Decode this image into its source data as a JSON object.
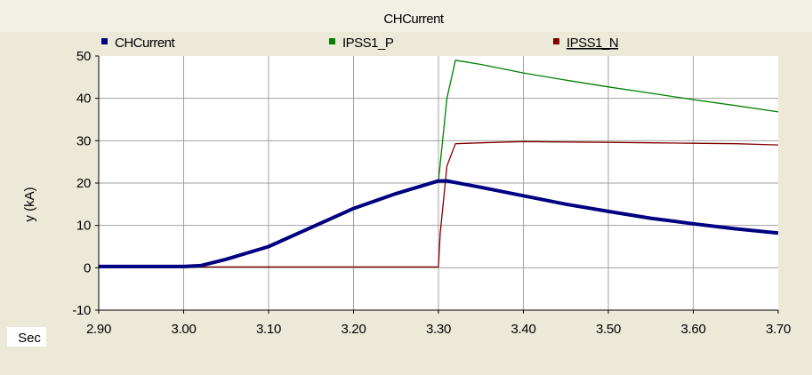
{
  "chart_data": {
    "type": "line",
    "title": "CHCurrent",
    "ylabel": "y (kA)",
    "xlabel": "Sec",
    "xlim": [
      2.9,
      3.7
    ],
    "ylim": [
      -10,
      50
    ],
    "x_ticks": [
      "2.90",
      "3.00",
      "3.10",
      "3.20",
      "3.30",
      "3.40",
      "3.50",
      "3.60",
      "3.70"
    ],
    "y_ticks": [
      "50",
      "40",
      "30",
      "20",
      "10",
      "0",
      "-10"
    ],
    "grid": true,
    "legend_position": "top",
    "series": [
      {
        "name": "CHCurrent",
        "color": "#000080",
        "x": [
          2.9,
          3.0,
          3.02,
          3.05,
          3.1,
          3.15,
          3.2,
          3.25,
          3.3,
          3.31,
          3.35,
          3.4,
          3.45,
          3.5,
          3.55,
          3.6,
          3.65,
          3.7
        ],
        "y": [
          0.3,
          0.3,
          0.5,
          2,
          5,
          9.5,
          14,
          17.5,
          20.5,
          20.5,
          19,
          17,
          15,
          13.3,
          11.7,
          10.4,
          9.2,
          8.2
        ]
      },
      {
        "name": "IPSS1_P",
        "color": "#008000",
        "x": [
          2.9,
          3.0,
          3.02,
          3.05,
          3.1,
          3.15,
          3.2,
          3.25,
          3.3,
          3.31,
          3.32,
          3.35,
          3.4,
          3.45,
          3.5,
          3.55,
          3.6,
          3.65,
          3.7
        ],
        "y": [
          0.3,
          0.3,
          0.5,
          2,
          5,
          9.5,
          14,
          17.5,
          20.5,
          40,
          49,
          48,
          46,
          44.3,
          42.7,
          41.2,
          39.7,
          38.3,
          36.8
        ]
      },
      {
        "name": "IPSS1_N",
        "color": "#800000",
        "x": [
          2.9,
          3.3,
          3.302,
          3.31,
          3.32,
          3.35,
          3.4,
          3.45,
          3.5,
          3.55,
          3.6,
          3.65,
          3.7
        ],
        "y": [
          0.2,
          0.2,
          8,
          24,
          29.3,
          29.5,
          29.8,
          29.7,
          29.6,
          29.5,
          29.4,
          29.3,
          29
        ]
      }
    ]
  }
}
